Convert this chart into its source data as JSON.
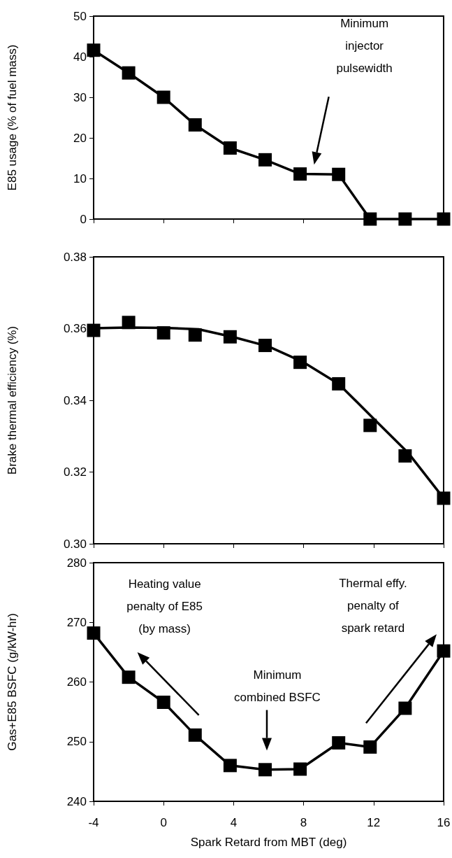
{
  "chart_data": [
    {
      "type": "line",
      "ylabel": "E85 usage (% of fuel mass)",
      "x": [
        -4,
        -2,
        0,
        1.8,
        3.8,
        5.8,
        7.8,
        10,
        11.8,
        13.8,
        16
      ],
      "series": [
        {
          "color": "#000000",
          "values": [
            41.6,
            36,
            30,
            23.2,
            17.5,
            14.6,
            11.1,
            11,
            0,
            0,
            0
          ]
        }
      ],
      "xlim": [
        -4,
        16
      ],
      "xticks": [
        -4,
        0,
        4,
        8,
        12,
        16
      ],
      "ylim": [
        0,
        50
      ],
      "yticks": [
        0,
        10,
        20,
        30,
        40,
        50
      ],
      "tick_labels": "y",
      "marker": "square",
      "line_style": "solid",
      "annotations": [
        "Minimum\ninjector\npulsewidth"
      ]
    },
    {
      "type": "scatter",
      "ylabel": "Brake thermal efficiency (%)",
      "x": [
        -4,
        -2,
        0,
        1.8,
        3.8,
        5.8,
        7.8,
        10,
        11.8,
        13.8,
        16
      ],
      "series": [
        {
          "color": "#000000",
          "marker": "square",
          "values": [
            0.3595,
            0.3617,
            0.3588,
            0.3582,
            0.3577,
            0.3553,
            0.3506,
            0.3446,
            0.333,
            0.3245,
            0.3127
          ]
        },
        {
          "type": "line",
          "color": "#000000",
          "marker": "none",
          "x": [
            -4,
            -2,
            0,
            2,
            4,
            6,
            8,
            10,
            12,
            14,
            16
          ],
          "values": [
            0.3601,
            0.3603,
            0.3602,
            0.3598,
            0.3576,
            0.355,
            0.3506,
            0.3446,
            0.3349,
            0.3252,
            0.3127
          ]
        }
      ],
      "xlim": [
        -4,
        16
      ],
      "xticks": [
        -4,
        0,
        4,
        8,
        12,
        16
      ],
      "ylim": [
        0.3,
        0.38
      ],
      "yticks": [
        {
          "value": 0.3,
          "label": "0.30"
        },
        {
          "value": 0.32,
          "label": "0.32"
        },
        {
          "value": 0.34,
          "label": "0.34"
        },
        {
          "value": 0.36,
          "label": "0.36"
        },
        {
          "value": 0.38,
          "label": "0.38"
        }
      ],
      "tick_labels": "y",
      "line_style": "solid"
    },
    {
      "type": "line",
      "xlabel": "Spark Retard from MBT (deg)",
      "ylabel": "Gas+E85 BSFC (g/kW-hr)",
      "x": [
        -4,
        -2,
        0,
        1.8,
        3.8,
        5.8,
        7.8,
        10,
        11.8,
        13.8,
        16
      ],
      "series": [
        {
          "color": "#000000",
          "values": [
            268.2,
            260.8,
            256.6,
            251.1,
            246,
            245.3,
            245.4,
            249.8,
            249.1,
            255.6,
            265.2
          ]
        }
      ],
      "xlim": [
        -4,
        16
      ],
      "xticks": [
        -4,
        0,
        4,
        8,
        12,
        16
      ],
      "ylim": [
        240,
        280
      ],
      "yticks": [
        240,
        250,
        260,
        270,
        280
      ],
      "marker": "square",
      "line_style": "solid",
      "annotations": [
        "Heating value\npenalty of E85\n(by mass)",
        "Minimum\ncombined BSFC",
        "Thermal effy.\npenalty of\nspark retard"
      ]
    }
  ]
}
